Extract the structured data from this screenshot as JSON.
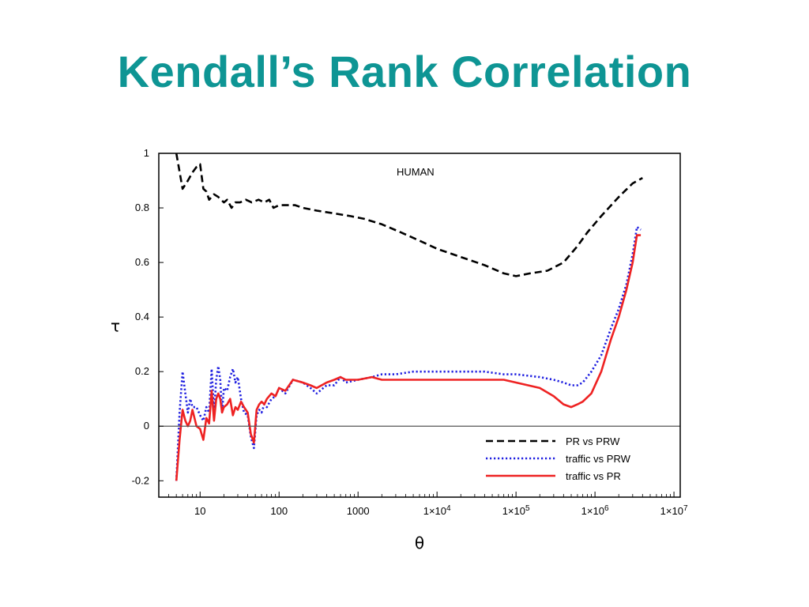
{
  "slide": {
    "title": "Kendall’s Rank Correlation"
  },
  "colors": {
    "title": "#0e9594",
    "series_black": "#000000",
    "series_blue": "#1f1fe0",
    "series_red": "#ee2222"
  },
  "chart_data": {
    "type": "line",
    "title": "",
    "annotation": "HUMAN",
    "xlabel": "θ",
    "ylabel": "τ",
    "xscale": "log",
    "xlim": [
      3,
      12000000
    ],
    "ylim": [
      -0.26,
      1.0
    ],
    "yticks": [
      {
        "value": -0.2,
        "label": "-0.2"
      },
      {
        "value": 0,
        "label": "0"
      },
      {
        "value": 0.2,
        "label": "0.2"
      },
      {
        "value": 0.4,
        "label": "0.4"
      },
      {
        "value": 0.6,
        "label": "0.6"
      },
      {
        "value": 0.8,
        "label": "0.8"
      },
      {
        "value": 1,
        "label": "1"
      }
    ],
    "xticks": [
      {
        "value": 10,
        "label": "10"
      },
      {
        "value": 100,
        "label": "100"
      },
      {
        "value": 1000,
        "label": "1000"
      },
      {
        "value": 10000,
        "label": "1×10",
        "exp": "4"
      },
      {
        "value": 100000,
        "label": "1×10",
        "exp": "5"
      },
      {
        "value": 1000000,
        "label": "1×10",
        "exp": "6"
      },
      {
        "value": 10000000,
        "label": "1×10",
        "exp": "7"
      }
    ],
    "zero_line": true,
    "grid": false,
    "legend_position": "bottom-right",
    "series": [
      {
        "name": "PR vs PRW",
        "style": "dashed",
        "color": "#000000",
        "x": [
          5,
          6,
          7,
          8,
          9,
          10,
          11,
          12,
          13,
          15,
          17,
          20,
          22,
          25,
          28,
          32,
          38,
          45,
          55,
          65,
          75,
          85,
          100,
          130,
          160,
          200,
          300,
          500,
          800,
          1200,
          2000,
          3500,
          6000,
          10000,
          20000,
          40000,
          70000,
          100000,
          150000,
          250000,
          400000,
          600000,
          800000,
          1200000,
          2000000,
          3000000,
          4000000
        ],
        "y": [
          1.0,
          0.87,
          0.9,
          0.93,
          0.95,
          0.96,
          0.87,
          0.86,
          0.83,
          0.85,
          0.84,
          0.82,
          0.83,
          0.8,
          0.82,
          0.82,
          0.83,
          0.82,
          0.83,
          0.82,
          0.83,
          0.8,
          0.81,
          0.81,
          0.81,
          0.8,
          0.79,
          0.78,
          0.77,
          0.76,
          0.74,
          0.71,
          0.68,
          0.65,
          0.62,
          0.59,
          0.56,
          0.55,
          0.56,
          0.57,
          0.6,
          0.66,
          0.71,
          0.77,
          0.84,
          0.89,
          0.91
        ]
      },
      {
        "name": "traffic vs PRW",
        "style": "dotted",
        "color": "#1f1fe0",
        "x": [
          5,
          5.5,
          6,
          6.5,
          7,
          7.5,
          8,
          9,
          10,
          11,
          12,
          13,
          14,
          15,
          16,
          17,
          18,
          19,
          20,
          22,
          24,
          26,
          28,
          30,
          33,
          36,
          40,
          44,
          48,
          52,
          56,
          60,
          65,
          70,
          80,
          90,
          100,
          120,
          150,
          200,
          250,
          300,
          400,
          500,
          600,
          700,
          1000,
          1500,
          2000,
          3000,
          5000,
          8000,
          10000,
          20000,
          40000,
          70000,
          100000,
          200000,
          300000,
          400000,
          500000,
          600000,
          700000,
          900000,
          1200000,
          1600000,
          2000000,
          2500000,
          3000000,
          3400000,
          3800000
        ],
        "y": [
          -0.2,
          0.05,
          0.2,
          0.12,
          0.05,
          0.1,
          0.07,
          0.07,
          0.04,
          0.02,
          0.07,
          0.05,
          0.21,
          0.05,
          0.17,
          0.22,
          0.17,
          0.05,
          0.14,
          0.13,
          0.18,
          0.21,
          0.16,
          0.18,
          0.1,
          0.05,
          0.04,
          -0.04,
          -0.08,
          0.04,
          0.06,
          0.05,
          0.08,
          0.07,
          0.1,
          0.11,
          0.14,
          0.12,
          0.17,
          0.16,
          0.14,
          0.12,
          0.15,
          0.15,
          0.18,
          0.16,
          0.17,
          0.18,
          0.19,
          0.19,
          0.2,
          0.2,
          0.2,
          0.2,
          0.2,
          0.19,
          0.19,
          0.18,
          0.17,
          0.16,
          0.15,
          0.15,
          0.16,
          0.2,
          0.26,
          0.36,
          0.43,
          0.52,
          0.63,
          0.73,
          0.72
        ]
      },
      {
        "name": "traffic vs PR",
        "style": "solid",
        "color": "#ee2222",
        "x": [
          5,
          5.5,
          6,
          6.5,
          7,
          7.5,
          8,
          9,
          10,
          11,
          12,
          13,
          14,
          15,
          16,
          17,
          18,
          19,
          20,
          22,
          24,
          26,
          28,
          30,
          33,
          36,
          40,
          44,
          48,
          52,
          56,
          60,
          65,
          70,
          80,
          90,
          100,
          120,
          150,
          200,
          250,
          300,
          400,
          500,
          600,
          700,
          1000,
          1500,
          2000,
          3000,
          5000,
          8000,
          10000,
          20000,
          40000,
          70000,
          100000,
          200000,
          300000,
          400000,
          500000,
          600000,
          700000,
          900000,
          1200000,
          1600000,
          2000000,
          2500000,
          3000000,
          3400000,
          3800000
        ],
        "y": [
          -0.2,
          -0.05,
          0.06,
          0.02,
          0.0,
          0.02,
          0.06,
          0.0,
          -0.01,
          -0.05,
          0.03,
          0.01,
          0.13,
          0.02,
          0.1,
          0.12,
          0.1,
          0.05,
          0.07,
          0.08,
          0.1,
          0.04,
          0.07,
          0.06,
          0.09,
          0.07,
          0.05,
          -0.03,
          -0.06,
          0.06,
          0.08,
          0.09,
          0.08,
          0.1,
          0.12,
          0.11,
          0.14,
          0.13,
          0.17,
          0.16,
          0.15,
          0.14,
          0.16,
          0.17,
          0.18,
          0.17,
          0.17,
          0.18,
          0.17,
          0.17,
          0.17,
          0.17,
          0.17,
          0.17,
          0.17,
          0.17,
          0.16,
          0.14,
          0.11,
          0.08,
          0.07,
          0.08,
          0.09,
          0.12,
          0.2,
          0.32,
          0.4,
          0.5,
          0.6,
          0.7,
          0.7
        ]
      }
    ]
  }
}
